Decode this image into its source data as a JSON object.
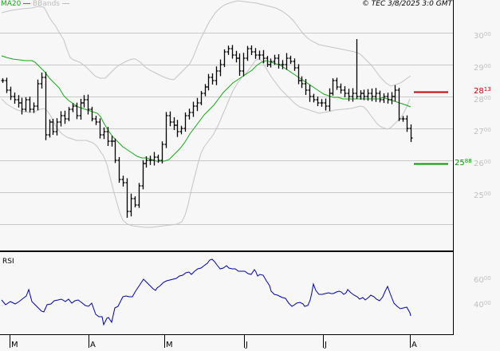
{
  "header": {
    "legend_ma": "MA20",
    "legend_bb": "BBands",
    "copyright": "© TEC 3/8/2025 3:0 GMT"
  },
  "colors": {
    "background": "#f7f7f7",
    "grid": "#c8c8c8",
    "bars": "#000000",
    "ma20": "#11aa11",
    "bbands": "#c0c0c0",
    "rsi": "#0000aa",
    "resistance": "#cc0000",
    "support": "#009900",
    "axis_text": "#c0c0c0"
  },
  "rsi_panel": {
    "title": "RSI"
  },
  "chart_data": [
    {
      "type": "ohlc",
      "title": "",
      "xlabel": "",
      "ylabel": "",
      "ylim": [
        2400,
        3100
      ],
      "grid": true,
      "legend": [
        "MA20",
        "BBands"
      ],
      "legend_position": "top-left",
      "y_ticks": [
        {
          "value": 3000,
          "major": "30",
          "minor": "00"
        },
        {
          "value": 2900,
          "major": "29",
          "minor": "00"
        },
        {
          "value": 2800,
          "major": "28",
          "minor": "00"
        },
        {
          "value": 2700,
          "major": "27",
          "minor": "00"
        },
        {
          "value": 2600,
          "major": "26",
          "minor": "00"
        },
        {
          "value": 2500,
          "major": "25",
          "minor": "00"
        }
      ],
      "x_ticks": [
        "M",
        "A",
        "M",
        "J",
        "J",
        "A"
      ],
      "annotations": [
        {
          "type": "resistance",
          "value": 2813,
          "major": "28",
          "minor": "13",
          "color": "#cc0000"
        },
        {
          "type": "support",
          "value": 2588,
          "major": "25",
          "minor": "88",
          "color": "#009900"
        }
      ],
      "close_approx": [
        2850,
        2820,
        2800,
        2790,
        2780,
        2760,
        2790,
        2760,
        2770,
        2840,
        2860,
        2680,
        2720,
        2690,
        2720,
        2740,
        2730,
        2760,
        2770,
        2740,
        2780,
        2790,
        2760,
        2730,
        2720,
        2680,
        2690,
        2660,
        2660,
        2600,
        2540,
        2530,
        2440,
        2480,
        2460,
        2520,
        2590,
        2600,
        2600,
        2610,
        2600,
        2650,
        2740,
        2720,
        2710,
        2690,
        2700,
        2740,
        2750,
        2770,
        2780,
        2810,
        2830,
        2860,
        2850,
        2880,
        2900,
        2940,
        2950,
        2930,
        2920,
        2880,
        2920,
        2950,
        2940,
        2930,
        2930,
        2920,
        2900,
        2910,
        2920,
        2900,
        2900,
        2920,
        2910,
        2890,
        2850,
        2840,
        2820,
        2800,
        2790,
        2780,
        2780,
        2770,
        2810,
        2850,
        2830,
        2820,
        2810,
        2800,
        2810,
        2800,
        2810,
        2800,
        2810,
        2800,
        2810,
        2790,
        2800,
        2790,
        2800,
        2820,
        2730,
        2730,
        2700,
        2670
      ],
      "series": [
        {
          "name": "MA20",
          "values_approx": [
            2925,
            2920,
            2905,
            2900,
            2860,
            2800,
            2760,
            2740,
            2720,
            2680,
            2640,
            2610,
            2600,
            2610,
            2660,
            2730,
            2790,
            2840,
            2880,
            2920,
            2930,
            2920,
            2880,
            2850,
            2830,
            2820,
            2810,
            2810,
            2810,
            2800,
            2780
          ]
        },
        {
          "name": "BBands upper",
          "values_approx": [
            2980,
            3000,
            3040,
            2870,
            2840,
            2870,
            2800,
            2750,
            2700,
            2690,
            2680,
            2680,
            2700,
            2740,
            2790,
            2900,
            2970,
            2990,
            3000,
            2980,
            2970,
            3000,
            2900,
            2830,
            2820,
            2820,
            2820,
            2800,
            2830,
            2860
          ]
        },
        {
          "name": "BBands lower",
          "values_approx": [
            2780,
            2740,
            2700,
            2690,
            2740,
            2720,
            2630,
            2480,
            2420,
            2410,
            2430,
            2420,
            2510,
            2670,
            2750,
            2800,
            2900,
            2880,
            2800,
            2760,
            2750,
            2760,
            2770,
            2780,
            2720
          ]
        }
      ]
    },
    {
      "type": "line",
      "title": "RSI",
      "ylim": [
        20,
        80
      ],
      "y_ticks": [
        {
          "value": 60,
          "major": "60",
          "minor": "00"
        },
        {
          "value": 40,
          "major": "40",
          "minor": "00"
        }
      ],
      "series": [
        {
          "name": "RSI",
          "values_approx": [
            44,
            41,
            43,
            42,
            44,
            46,
            50,
            42,
            38,
            36,
            41,
            42,
            45,
            45,
            44,
            46,
            44,
            45,
            43,
            42,
            44,
            33,
            32,
            26,
            31,
            29,
            36,
            40,
            44,
            45,
            44,
            46,
            48,
            52,
            56,
            52,
            50,
            52,
            54,
            55,
            56,
            57,
            58,
            62,
            63,
            65,
            62,
            58,
            57,
            58,
            59,
            58,
            57,
            55,
            56,
            53,
            54,
            52,
            47,
            44,
            43,
            41,
            38,
            36,
            38,
            37,
            39,
            38,
            40,
            54,
            50,
            50,
            51,
            50,
            51,
            49,
            52,
            49,
            50,
            48,
            47,
            48,
            46,
            49,
            48,
            47,
            45,
            47,
            55,
            48,
            44,
            42,
            42,
            41,
            38,
            33
          ]
        }
      ]
    }
  ]
}
